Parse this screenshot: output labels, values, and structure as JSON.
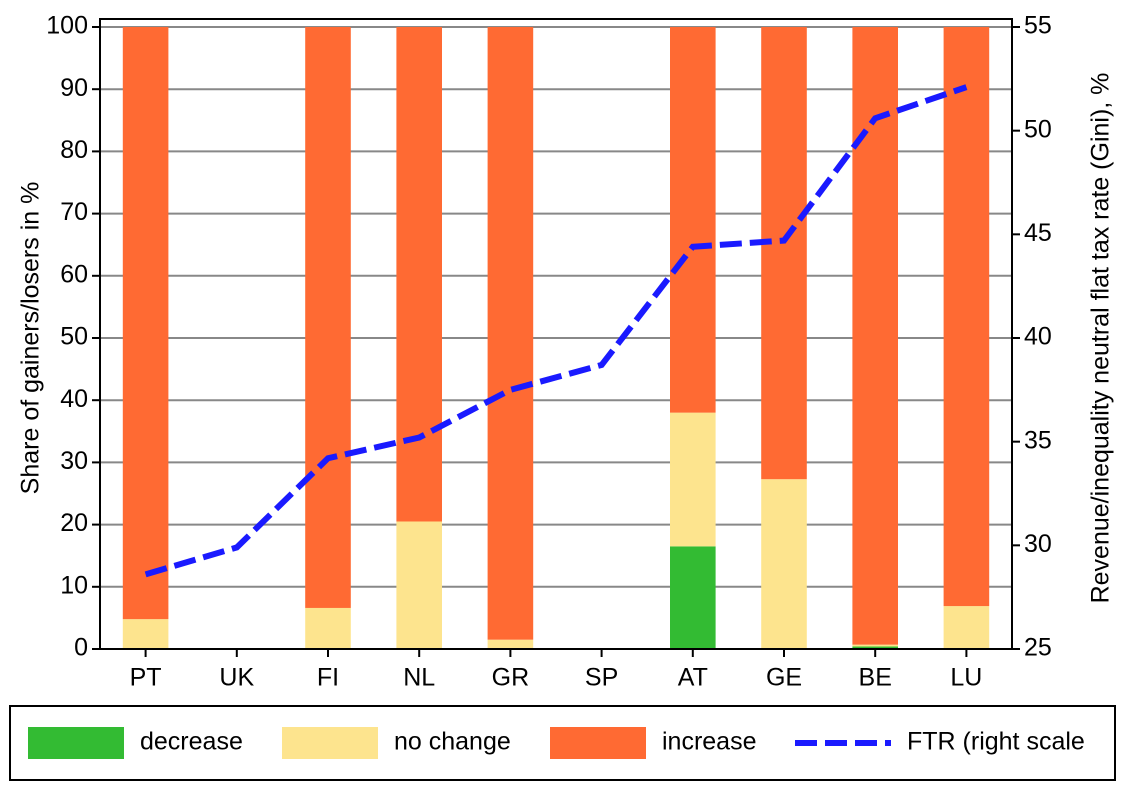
{
  "chart_data": {
    "type": "bar",
    "stacked": true,
    "categories": [
      "PT",
      "UK",
      "FI",
      "NL",
      "GR",
      "SP",
      "AT",
      "GE",
      "BE",
      "LU"
    ],
    "series": [
      {
        "name": "decrease",
        "color": "#33bb33",
        "values": [
          0,
          null,
          0,
          0,
          0,
          null,
          16.5,
          0,
          0.4,
          0
        ]
      },
      {
        "name": "no change",
        "color": "#fde48e",
        "values": [
          4.8,
          null,
          6.6,
          20.5,
          1.5,
          null,
          21.5,
          27.3,
          0.3,
          6.9
        ]
      },
      {
        "name": "increase",
        "color": "#ff6a33",
        "values": [
          95.2,
          null,
          93.4,
          79.5,
          98.5,
          null,
          62,
          72.7,
          99.3,
          93.1
        ]
      },
      {
        "name": "FTR (right scale",
        "color": "#1a1aff",
        "type": "line",
        "axis": "y2",
        "values": [
          28.6,
          29.9,
          34.2,
          35.2,
          37.5,
          38.7,
          44.4,
          44.7,
          50.6,
          52.1
        ]
      }
    ],
    "ylabel": "Share of gainers/losers in %",
    "y2label": "Revenue/inequality neutral flat tax rate (Gini), %",
    "ylim": [
      0,
      100
    ],
    "yticks": [
      0,
      10,
      20,
      30,
      40,
      50,
      60,
      70,
      80,
      90,
      100
    ],
    "y2lim": [
      25,
      55
    ],
    "y2ticks": [
      25,
      30,
      35,
      40,
      45,
      50,
      55
    ],
    "grid": true,
    "legend": "bottom"
  }
}
